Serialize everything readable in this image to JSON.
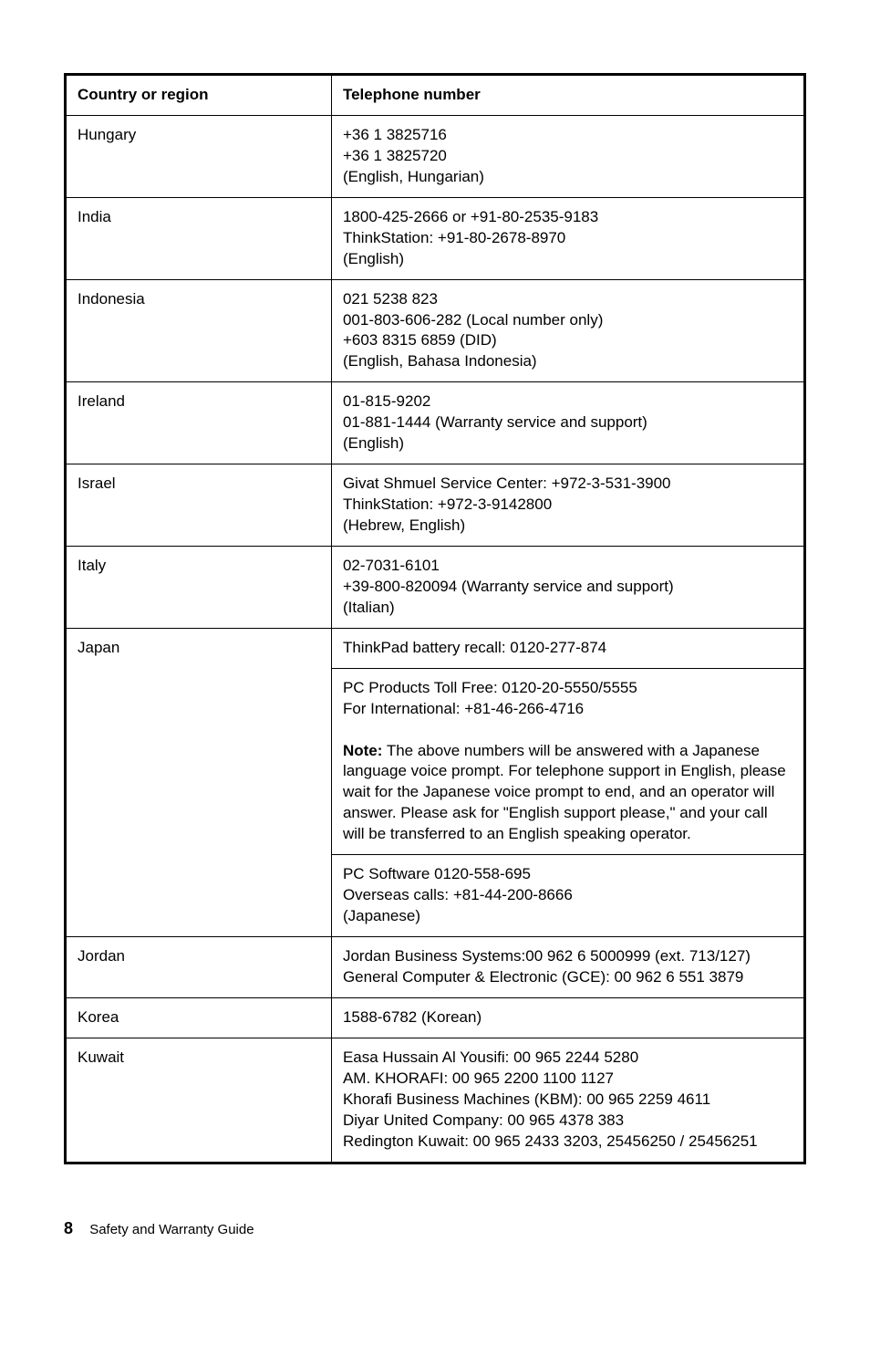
{
  "table": {
    "header": {
      "country": "Country or region",
      "phone": "Telephone number"
    },
    "rows": [
      {
        "country": "Hungary",
        "phone_html": "+36 1 3825716<br>+36 1 3825720<br>(English, Hungarian)"
      },
      {
        "country": "India",
        "phone_html": "1800-425-2666 or +91-80-2535-9183<br>ThinkStation: +91-80-2678-8970<br>(English)"
      },
      {
        "country": "Indonesia",
        "phone_html": "021 5238 823<br>001-803-606-282 (Local number only)<br>+603 8315 6859 (DID)<br>(English, Bahasa Indonesia)"
      },
      {
        "country": "Ireland",
        "phone_html": "01-815-9202<br>01-881-1444 (Warranty service and support)<br>(English)"
      },
      {
        "country": "Israel",
        "phone_html": "Givat Shmuel Service Center: +972-3-531-3900<br>ThinkStation: +972-3-9142800<br>(Hebrew, English)"
      },
      {
        "country": "Italy",
        "phone_html": "02-7031-6101<br>+39-800-820094 (Warranty service and support)<br>(Italian)"
      },
      {
        "country": "Japan",
        "rowspan": 3,
        "phone_html": "ThinkPad battery recall: 0120-277-874"
      },
      {
        "country": "",
        "phone_html": "PC Products Toll Free: 0120-20-5550/5555<br>For International: +81-46-266-4716<br><br><span class=\"note-label\">Note:</span> The above numbers will be answered with a Japanese language voice prompt. For telephone support in English, please wait for the Japanese voice prompt to end, and an operator will answer. Please ask for \"English support please,\" and your call will be transferred to an English speaking operator."
      },
      {
        "country": "",
        "phone_html": "PC Software 0120-558-695<br>Overseas calls: +81-44-200-8666<br>(Japanese)"
      },
      {
        "country": "Jordan",
        "phone_html": "Jordan Business Systems:00 962 6 5000999 (ext. 713/127)<br>General Computer & Electronic (GCE): 00 962 6 551 3879"
      },
      {
        "country": "Korea",
        "phone_html": "1588-6782 (Korean)"
      },
      {
        "country": "Kuwait",
        "phone_html": "Easa Hussain Al Yousifi: 00 965 2244 5280<br>AM. KHORAFI: 00 965 2200 1100 1127<br>Khorafi Business Machines (KBM): 00 965 2259 4611<br>Diyar United Company: 00 965 4378 383<br>Redington Kuwait: 00 965 2433 3203, 25456250 / 25456251"
      }
    ]
  },
  "footer": {
    "page_number": "8",
    "doc_title": "Safety and Warranty Guide"
  }
}
